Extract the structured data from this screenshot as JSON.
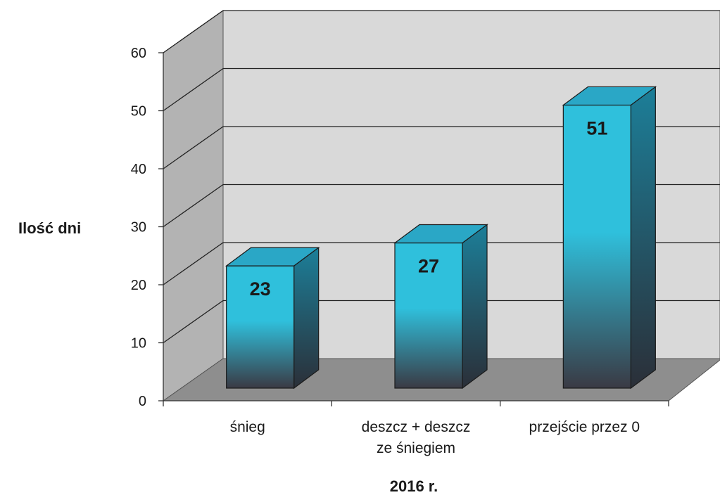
{
  "chart_data": {
    "type": "bar",
    "style": "3d-column",
    "categories": [
      [
        "śnieg"
      ],
      [
        "deszcz + deszcz",
        "ze śniegiem"
      ],
      [
        "przejście przez 0"
      ]
    ],
    "values": [
      23,
      27,
      51
    ],
    "data_labels": [
      "23",
      "27",
      "51"
    ],
    "ylabel": "Ilość dni",
    "xlabel": "2016 r.",
    "ylim": [
      0,
      60
    ],
    "yticks": [
      0,
      10,
      20,
      30,
      40,
      50,
      60
    ],
    "ytick_labels": [
      "0",
      "10",
      "20",
      "30",
      "40",
      "50",
      "60"
    ],
    "grid": true,
    "colors": {
      "bar_top_light": "#2fc0dc",
      "bar_bottom_dark": "#3a3a44",
      "bar_cap": "#2aa7c6",
      "bar_side": "#1c7f99",
      "back_wall": "#d9d9d9",
      "side_wall": "#b3b3b3",
      "floor": "#8e8e8e"
    }
  }
}
